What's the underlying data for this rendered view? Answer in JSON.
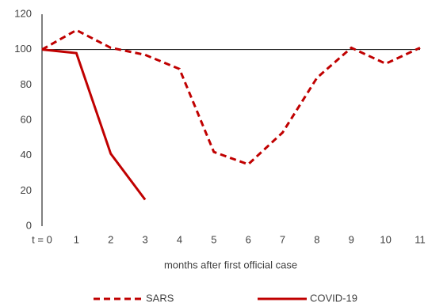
{
  "chart_data": {
    "type": "line",
    "categories": [
      "t = 0",
      "1",
      "2",
      "3",
      "4",
      "5",
      "6",
      "7",
      "8",
      "9",
      "10",
      "11"
    ],
    "series": [
      {
        "name": "SARS",
        "color": "#c00000",
        "dashed": true,
        "values": [
          100,
          111,
          101,
          97,
          89,
          42,
          35,
          53,
          84,
          101,
          92,
          101
        ]
      },
      {
        "name": "COVID-19",
        "color": "#c00000",
        "dashed": false,
        "values": [
          100,
          98,
          41,
          15,
          null,
          null,
          null,
          null,
          null,
          null,
          null,
          null
        ]
      }
    ],
    "ylim": [
      0,
      120
    ],
    "yticks": [
      0,
      20,
      40,
      60,
      80,
      100,
      120
    ],
    "reference_line": 100,
    "x_label": "months after first official case",
    "legend": "bottom"
  }
}
